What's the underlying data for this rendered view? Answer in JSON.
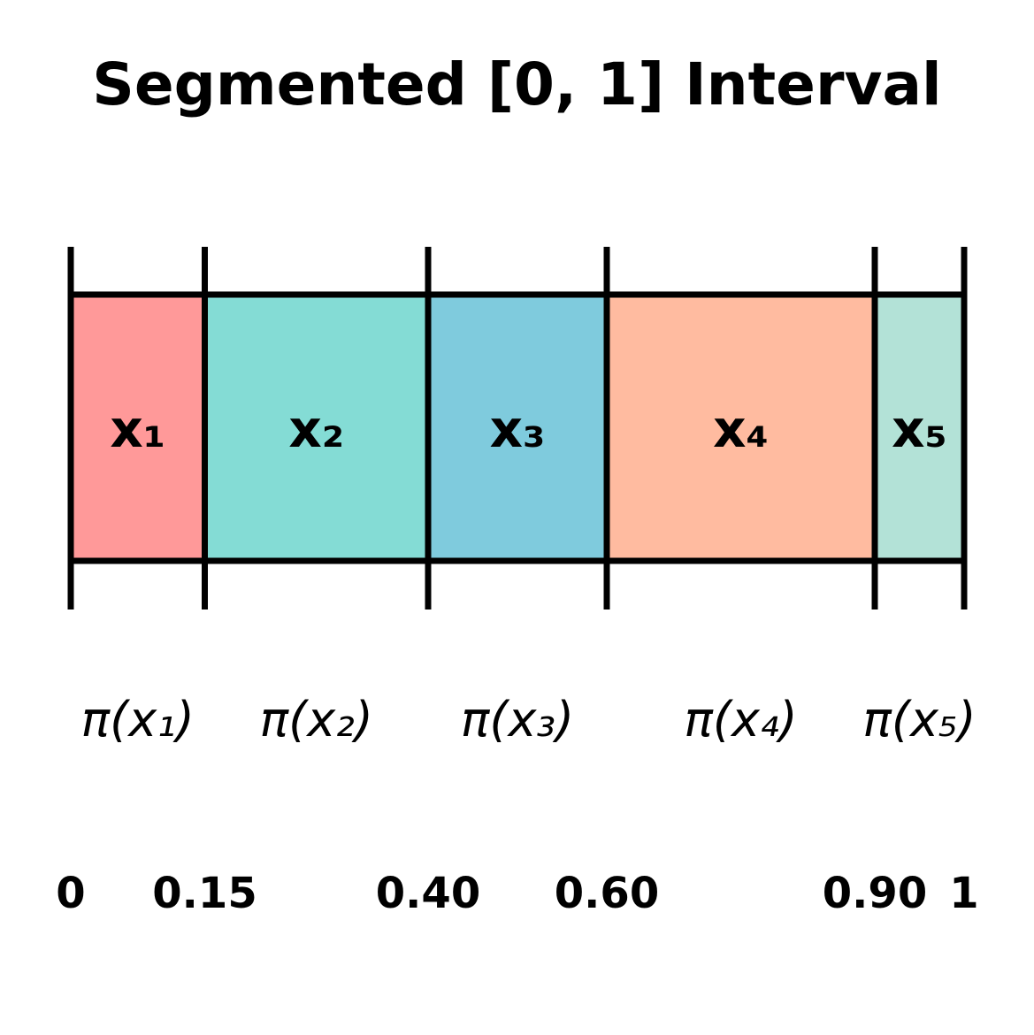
{
  "diagram": {
    "title": "Segmented [0, 1] Interval",
    "segments": [
      {
        "label": "x₁",
        "prob_label": "π(x₁)",
        "start": 0.0,
        "end": 0.15,
        "color": "#FF9999"
      },
      {
        "label": "x₂",
        "prob_label": "π(x₂)",
        "start": 0.15,
        "end": 0.4,
        "color": "#84DCD5"
      },
      {
        "label": "x₃",
        "prob_label": "π(x₃)",
        "start": 0.4,
        "end": 0.6,
        "color": "#7FCBDD"
      },
      {
        "label": "x₄",
        "prob_label": "π(x₄)",
        "start": 0.6,
        "end": 0.9,
        "color": "#FFBBA0"
      },
      {
        "label": "x₅",
        "prob_label": "π(x₅)",
        "start": 0.9,
        "end": 1.0,
        "color": "#B3E2D7"
      }
    ],
    "boundaries": [
      {
        "value": 0.0,
        "label": "0"
      },
      {
        "value": 0.15,
        "label": "0.15"
      },
      {
        "value": 0.4,
        "label": "0.40"
      },
      {
        "value": 0.6,
        "label": "0.60"
      },
      {
        "value": 0.9,
        "label": "0.90"
      },
      {
        "value": 1.0,
        "label": "1"
      }
    ],
    "outline_color": "#000000"
  }
}
